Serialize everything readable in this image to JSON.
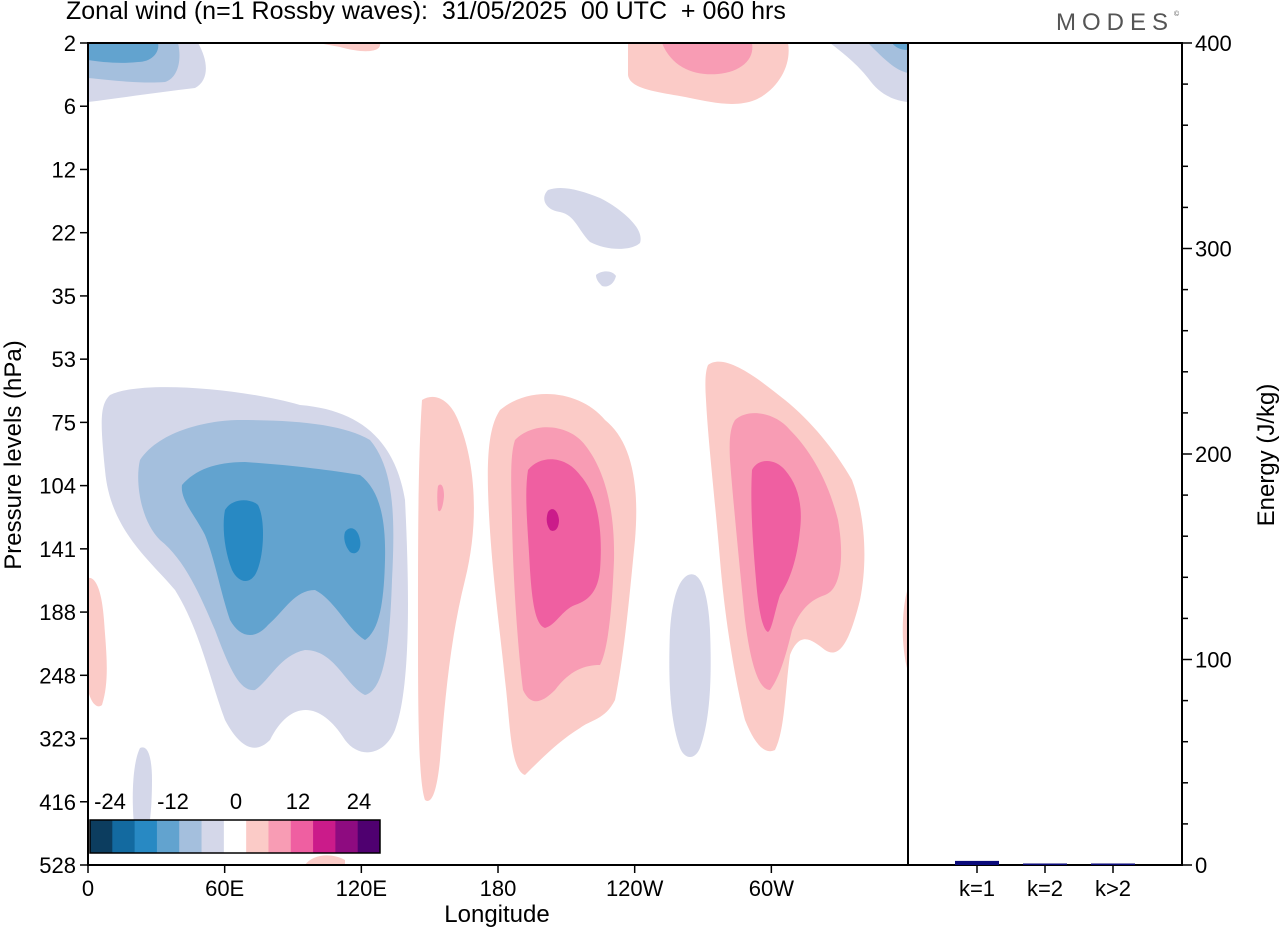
{
  "header": {
    "title": "Zonal wind (n=1 Rossby waves):  31/05/2025  00 UTC  + 060 hrs",
    "logo": "MODES",
    "logo_mark": "©"
  },
  "colors": {
    "scale": [
      "#0c3d5f",
      "#136aa0",
      "#2889c3",
      "#62a3cf",
      "#a4bfdd",
      "#d4d7e9",
      "#ffffff",
      "#fbcbc7",
      "#f89cb4",
      "#ef5fa1",
      "#cb1b8a",
      "#8e0b80",
      "#4f0070"
    ],
    "bar": "#0a0a7a",
    "axis": "#000000"
  },
  "chart_data": [
    {
      "type": "heatmap",
      "title": "Zonal wind (n=1 Rossby waves):  31/05/2025  00 UTC  + 060 hrs",
      "xlabel": "Longitude",
      "ylabel": "Pressure levels (hPa)",
      "x_ticks": [
        "0",
        "60E",
        "120E",
        "180",
        "120W",
        "60W"
      ],
      "y_ticks": [
        "2",
        "6",
        "12",
        "22",
        "35",
        "53",
        "75",
        "104",
        "141",
        "188",
        "248",
        "323",
        "416",
        "528"
      ],
      "colorbar": {
        "labels": [
          "-24",
          "-12",
          "0",
          "12",
          "24"
        ],
        "levels": [
          -30,
          -25,
          -20,
          -15,
          -10,
          -5,
          0,
          5,
          10,
          15,
          20,
          25,
          30
        ]
      },
      "features": [
        {
          "sign": "negative",
          "center_lon": 70,
          "center_hPa": 141,
          "min": -20
        },
        {
          "sign": "negative",
          "center_lon": 118,
          "center_hPa": 141,
          "min": -20
        },
        {
          "sign": "positive",
          "center_lon": 150,
          "center_hPa": 248,
          "max": 10
        },
        {
          "sign": "positive",
          "center_lon": 205,
          "center_hPa": 130,
          "max": 20
        },
        {
          "sign": "positive",
          "center_lon": 298,
          "center_hPa": 141,
          "max": 15
        },
        {
          "sign": "negative",
          "center_lon": 260,
          "center_hPa": 248,
          "min": -5
        },
        {
          "sign": "negative",
          "center_lon": 15,
          "center_hPa": 3,
          "min": -15
        },
        {
          "sign": "positive",
          "center_lon": 270,
          "center_hPa": 3,
          "max": 10
        },
        {
          "sign": "negative",
          "center_lon": 358,
          "center_hPa": 3,
          "min": -10
        }
      ]
    },
    {
      "type": "bar",
      "ylabel": "Energy (J/kg)",
      "categories": [
        "k=1",
        "k=2",
        "k>2"
      ],
      "values": [
        2.0,
        0.5,
        0.4
      ],
      "ylim": [
        0,
        400
      ],
      "y_ticks": [
        "0",
        "100",
        "200",
        "300",
        "400"
      ]
    }
  ]
}
